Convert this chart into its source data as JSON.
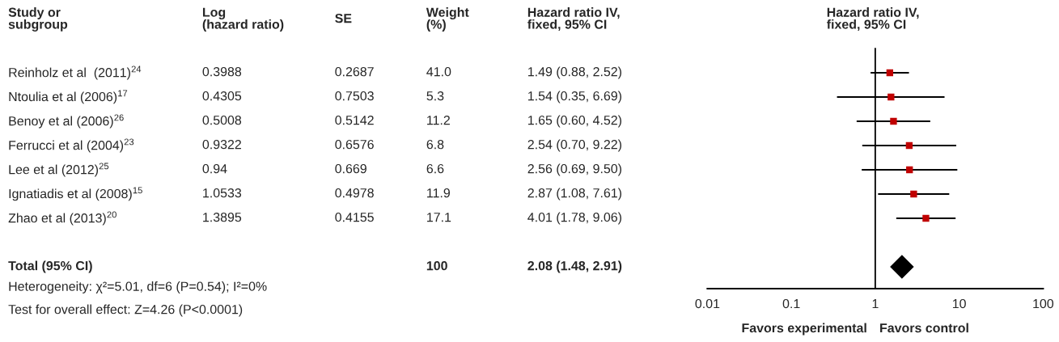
{
  "chart_data": [
    {
      "type": "other",
      "categories": [
        "Study or\nsubgroup",
        "Log\n(hazard ratio)",
        "SE",
        "Weight\n(%)",
        "Hazard ratio IV,\nfixed, 95% CI"
      ],
      "y_categories": [
        "Reinholz et al  (2011)$^{24}$",
        "Ntoulia et al (2006)$^{17}$",
        "Benoy et al (2006)$^{26}$",
        "Ferrucci et al (2004)$^{23}$",
        "Lee et al (2012)$^{25}$",
        "Ignatiadis et al (2008)$^{15}$",
        "Zhao et al (2013)$^{20}$",
        null,
        "Total (95% CI)"
      ],
      "cell_labels": [
        [
          "0.3988",
          "0.2687",
          "41.0",
          "1.49 (0.88, 2.52)"
        ],
        [
          "0.4305",
          "0.7503",
          "5.3",
          "1.54 (0.35, 6.69)"
        ],
        [
          "0.5008",
          "0.5142",
          "11.2",
          "1.65 (0.60, 4.52)"
        ],
        [
          "0.9322",
          "0.6576",
          "6.8",
          "2.54 (0.70, 9.22)"
        ],
        [
          "0.94",
          "0.669",
          "6.6",
          "2.56 (0.69, 9.50)"
        ],
        [
          "1.0533",
          "0.4978",
          "11.9",
          "2.87 (1.08, 7.61)"
        ],
        [
          "1.3895",
          "0.4155",
          "17.1",
          "4.01 (1.78, 9.06)"
        ],
        [
          null,
          null,
          null,
          null
        ],
        [
          null,
          null,
          "100",
          "2.08 (1.48, 2.91)"
        ]
      ],
      "annotations": [
        "Heterogeneity: χ²=5.01, df=6 (P=0.54); I²=0%",
        "Test for overall effect: Z=4.26 (P<0.0001)"
      ]
    },
    {
      "type": "scatter",
      "orientation": "horizontal",
      "title": "Hazard ratio IV,\nfixed, 95% CI",
      "categories": [
        null,
        null,
        null,
        null,
        null,
        null,
        null,
        null,
        null
      ],
      "series": [
        {
          "type": "scatter",
          "marker": "square",
          "color": "#c00000",
          "values": [
            1.49,
            1.54,
            1.65,
            2.54,
            2.56,
            2.87,
            4.01,
            null,
            null
          ],
          "errors": [
            [
              0.88,
              2.52
            ],
            [
              0.35,
              6.69
            ],
            [
              0.6,
              4.52
            ],
            [
              0.7,
              9.22
            ],
            [
              0.69,
              9.5
            ],
            [
              1.08,
              7.61
            ],
            [
              1.78,
              9.06
            ],
            null,
            null
          ]
        },
        {
          "type": "scatter",
          "marker": "diamond",
          "color": "#000000",
          "values": [
            null,
            null,
            null,
            null,
            null,
            null,
            null,
            null,
            2.08
          ]
        }
      ],
      "log": "x",
      "xlim": [
        0.01,
        100
      ],
      "xticks": [
        0.01,
        0.1,
        1,
        10,
        100
      ],
      "tick_labels": "x",
      "grid": false,
      "legend": false,
      "ref_lines": [
        {
          "axis": "x",
          "value": 1,
          "color": "#000000"
        }
      ],
      "annotations": [
        "Favors experimental",
        "Favors control"
      ]
    }
  ]
}
